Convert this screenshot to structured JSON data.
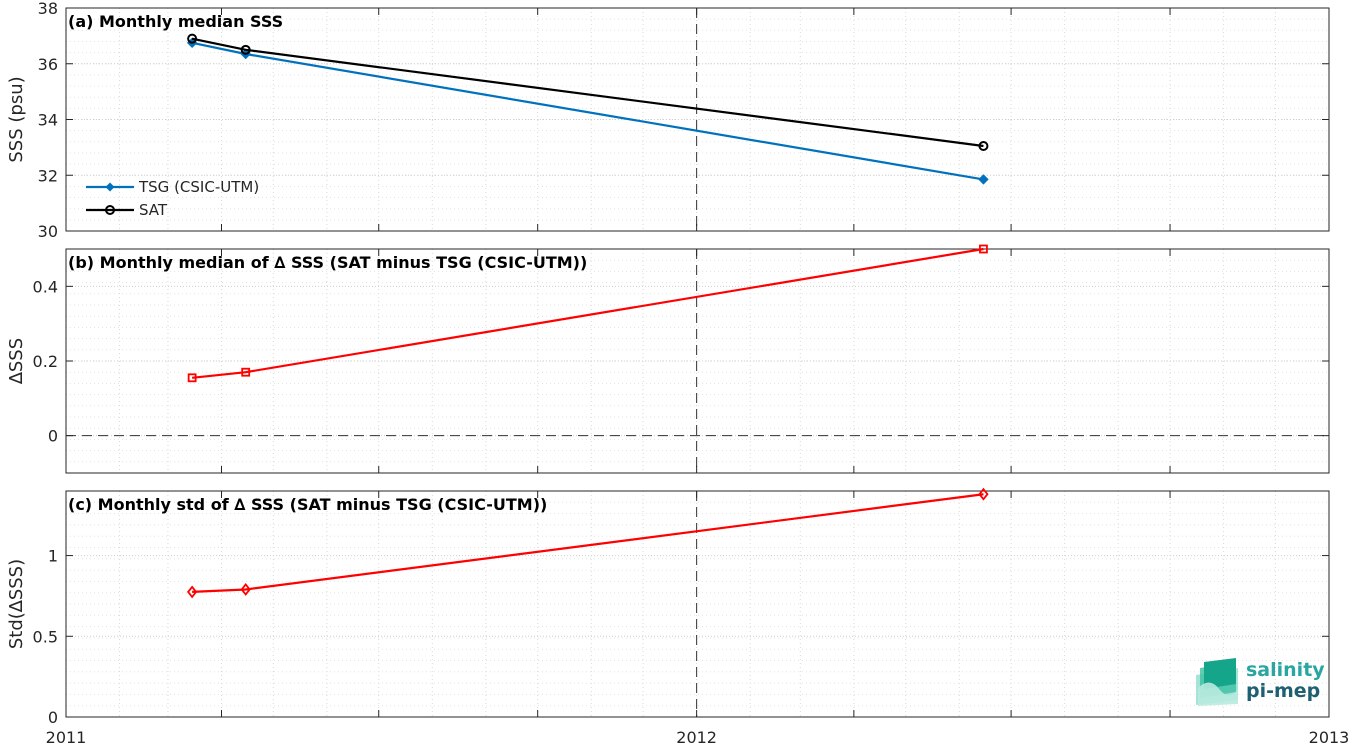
{
  "chart_data": [
    {
      "type": "line",
      "title": "(a) Monthly median SSS",
      "ylabel": "SSS (psu)",
      "ylim": [
        30,
        38
      ],
      "yticks": [
        30,
        32,
        34,
        36,
        38
      ],
      "xlim": [
        "2011-01-01",
        "2013-01-01"
      ],
      "x_tick_labels": [
        "2011",
        "2012",
        "2013"
      ],
      "x": [
        "2011-03-15",
        "2011-04-15",
        "2012-06-15"
      ],
      "grid": true,
      "legend_position": "bottom-left",
      "series": [
        {
          "name": "TSG (CSIC-UTM)",
          "values": [
            36.75,
            36.35,
            31.85
          ],
          "color": "#0072BD",
          "marker": "diamond-filled"
        },
        {
          "name": "SAT",
          "values": [
            36.9,
            36.5,
            33.05
          ],
          "color": "#000000",
          "marker": "circle-open"
        }
      ]
    },
    {
      "type": "line",
      "title": "(b) Monthly median of ∆ SSS (SAT minus TSG (CSIC-UTM))",
      "ylabel": "∆SSS",
      "ylim": [
        -0.1,
        0.5
      ],
      "yticks": [
        0,
        0.2,
        0.4
      ],
      "ytick_labels": [
        "0",
        "0.2",
        "0.4"
      ],
      "xlim": [
        "2011-01-01",
        "2013-01-01"
      ],
      "x": [
        "2011-03-15",
        "2011-04-15",
        "2012-06-15"
      ],
      "grid": true,
      "reference_line": 0,
      "series": [
        {
          "values": [
            0.155,
            0.17,
            0.5
          ],
          "color": "#FF0000",
          "marker": "square-open"
        }
      ]
    },
    {
      "type": "line",
      "title": "(c) Monthly std of ∆ SSS (SAT minus TSG (CSIC-UTM))",
      "ylabel": "Std(∆SSS)",
      "ylim": [
        0,
        1.4
      ],
      "yticks": [
        0,
        0.5,
        1
      ],
      "ytick_labels": [
        "0",
        "0.5",
        "1"
      ],
      "xlim": [
        "2011-01-01",
        "2013-01-01"
      ],
      "x_tick_labels": [
        "2011",
        "2012",
        "2013"
      ],
      "x": [
        "2011-03-15",
        "2011-04-15",
        "2012-06-15"
      ],
      "grid": true,
      "series": [
        {
          "values": [
            0.775,
            0.79,
            1.38
          ],
          "color": "#FF0000",
          "marker": "diamond-open"
        }
      ]
    }
  ],
  "logo": {
    "line1": "salinity",
    "line2": "pi-mep"
  }
}
